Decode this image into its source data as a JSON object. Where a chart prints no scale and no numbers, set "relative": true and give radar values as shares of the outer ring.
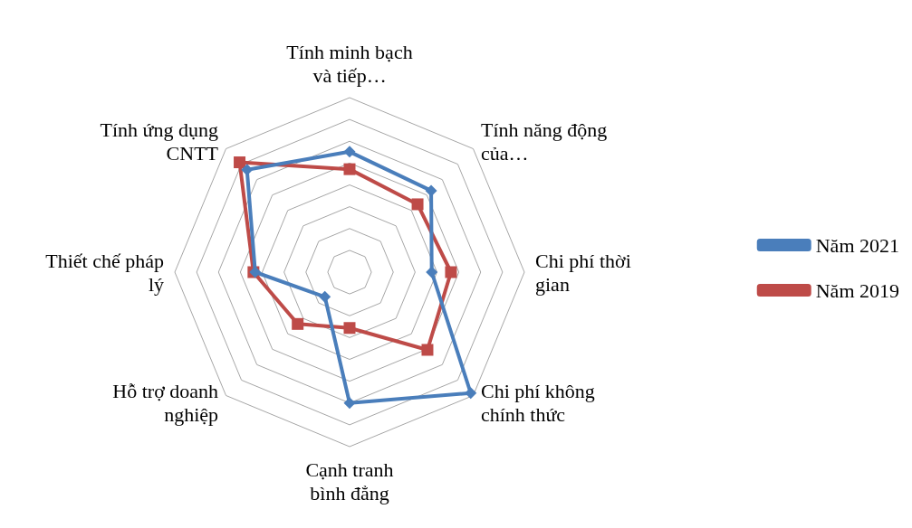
{
  "chart_data": {
    "type": "radar",
    "relative": true,
    "categories": [
      "Tính minh bạch và tiếp…",
      "Tính năng động của…",
      "Chi phí thời gian",
      "Chi phí không chính thức",
      "Cạnh tranh bình đẳng",
      "Hỗ trợ doanh nghiệp",
      "Thiết chế pháp lý",
      "Tính ứng dụng CNTT"
    ],
    "series": [
      {
        "name": "Năm 2021",
        "color": "#4a7ebb",
        "marker": "diamond",
        "values": [
          0.69,
          0.66,
          0.47,
          0.98,
          0.75,
          0.2,
          0.54,
          0.83
        ]
      },
      {
        "name": "Năm 2019",
        "color": "#be4b48",
        "marker": "square",
        "values": [
          0.59,
          0.55,
          0.58,
          0.63,
          0.32,
          0.42,
          0.55,
          0.89
        ]
      }
    ],
    "legend": "right",
    "grid": true
  }
}
